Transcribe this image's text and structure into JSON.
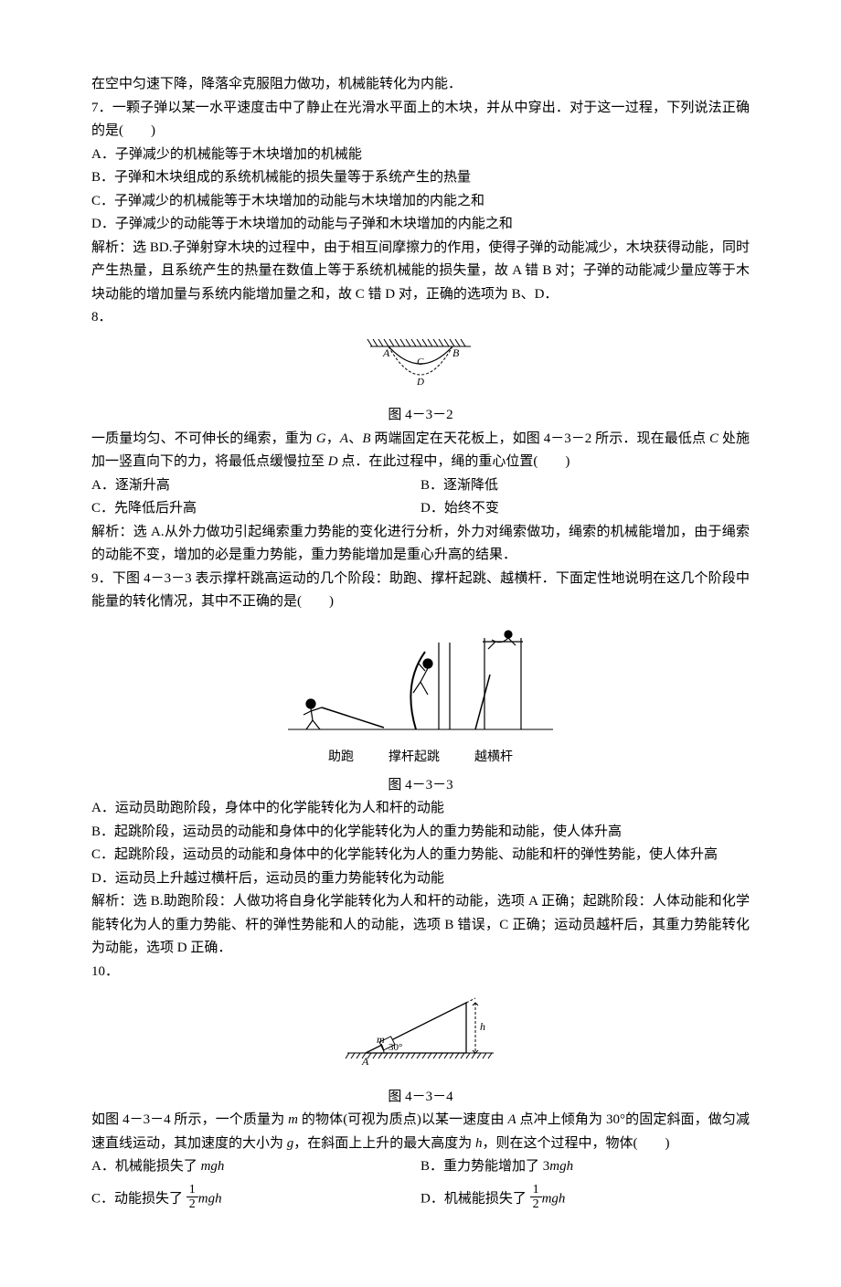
{
  "intro6": "在空中匀速下降，降落伞克服阻力做功，机械能转化为内能．",
  "q7": {
    "num": "7．",
    "stem": "一颗子弹以某一水平速度击中了静止在光滑水平面上的木块，并从中穿出．对于这一过程，下列说法正确的是(　　)",
    "A": "A．子弹减少的机械能等于木块增加的机械能",
    "B": "B．子弹和木块组成的系统机械能的损失量等于系统产生的热量",
    "C": "C．子弹减少的机械能等于木块增加的动能与木块增加的内能之和",
    "D": "D．子弹减少的动能等于木块增加的动能与子弹和木块增加的内能之和",
    "sol": "解析：选 BD.子弹射穿木块的过程中，由于相互间摩擦力的作用，使得子弹的动能减少，木块获得动能，同时产生热量，且系统产生的热量在数值上等于系统机械能的损失量，故 A 错 B 对；子弹的动能减少量应等于木块动能的增加量与系统内能增加量之和，故 C 错 D 对，正确的选项为 B、D．"
  },
  "q8": {
    "num": "8．",
    "fig_caption": "图 4－3－2",
    "fig": {
      "labels": {
        "A": "A",
        "B": "B",
        "C": "C",
        "D": "D"
      },
      "stroke": "#000000",
      "hatch": "#000000",
      "dash": "3,2"
    },
    "stem_a": "一质量均匀、不可伸长的绳索，重为 ",
    "stem_G": "G",
    "stem_b": "，",
    "stem_A": "A",
    "stem_c": "、",
    "stem_B": "B",
    "stem_d": " 两端固定在天花板上，如图 4－3－2 所示．现在最低点 ",
    "stem_C": "C",
    "stem_e": " 处施加一竖直向下的力，将最低点缓慢拉至 ",
    "stem_D": "D",
    "stem_f": " 点．在此过程中，绳的重心位置(　　)",
    "optA": "A．逐渐升高",
    "optB": "B．逐渐降低",
    "optC": "C．先降低后升高",
    "optD": "D．始终不变",
    "sol": "解析：选 A.从外力做功引起绳索重力势能的变化进行分析，外力对绳索做功，绳索的机械能增加，由于绳索的动能不变，增加的必是重力势能，重力势能增加是重心升高的结果．"
  },
  "q9": {
    "num": "9．",
    "stem": "下图 4－3－3 表示撑杆跳高运动的几个阶段：助跑、撑杆起跳、越横杆．下面定性地说明在这几个阶段中能量的转化情况，其中不正确的是(　　)",
    "stage1": "助跑",
    "stage2": "撑杆起跳",
    "stage3": "越横杆",
    "fig_caption": "图 4－3－3",
    "fig": {
      "stroke": "#000000",
      "fill": "#000000"
    },
    "A": "A．运动员助跑阶段，身体中的化学能转化为人和杆的动能",
    "B": "B．起跳阶段，运动员的动能和身体中的化学能转化为人的重力势能和动能，使人体升高",
    "C": "C．起跳阶段，运动员的动能和身体中的化学能转化为人的重力势能、动能和杆的弹性势能，使人体升高",
    "D": "D．运动员上升越过横杆后，运动员的重力势能转化为动能",
    "sol": "解析：选 B.助跑阶段：人做功将自身化学能转化为人和杆的动能，选项 A 正确；起跳阶段：人体动能和化学能转化为人的重力势能、杆的弹性势能和人的动能，选项 B 错误，C 正确；运动员越杆后，其重力势能转化为动能，选项 D 正确．"
  },
  "q10": {
    "num": "10．",
    "fig_caption": "图 4－3－4",
    "fig": {
      "labels": {
        "m": "m",
        "angle": "30°",
        "h": "h",
        "A": "A"
      },
      "stroke": "#000000",
      "dash": "3,2"
    },
    "stem_a": "如图 4－3－4 所示，一个质量为 ",
    "stem_m": "m",
    "stem_b": " 的物体(可视为质点)以某一速度由 ",
    "stem_A": "A",
    "stem_c": " 点冲上倾角为 30°的固定斜面，做匀减速直线运动，其加速度的大小为 ",
    "stem_g": "g",
    "stem_d": "，在斜面上上升的最大高度为 ",
    "stem_h": "h",
    "stem_e": "，则在这个过程中，物体(　　)",
    "optA_pre": "A．机械能损失了 ",
    "optA_var": "mgh",
    "optB_pre": "B．重力势能增加了 3",
    "optB_var": "mgh",
    "optC_pre": "C．动能损失了 ",
    "optC_var": "mgh",
    "optD_pre": "D．机械能损失了 ",
    "optD_var": "mgh",
    "frac": {
      "num": "1",
      "den": "2"
    }
  }
}
